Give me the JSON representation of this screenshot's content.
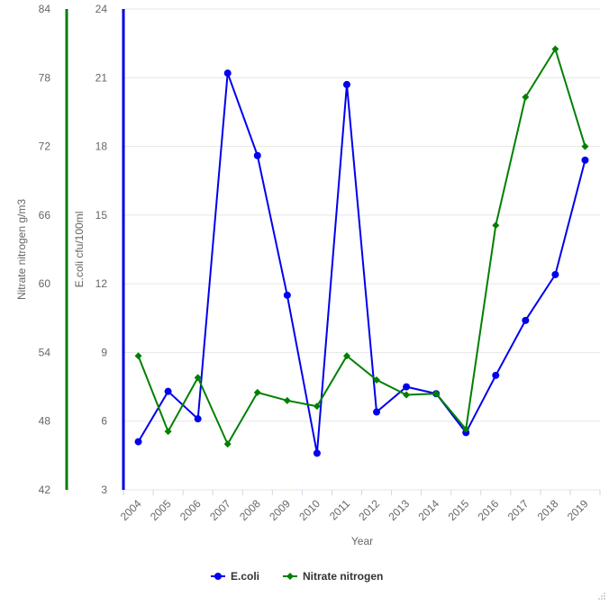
{
  "chart_data": {
    "type": "line",
    "categories": [
      "2004",
      "2005",
      "2006",
      "2007",
      "2008",
      "2009",
      "2010",
      "2011",
      "2012",
      "2013",
      "2014",
      "2015",
      "2016",
      "2017",
      "2018",
      "2019"
    ],
    "xlabel": "Year",
    "grid": true,
    "legend_position": "bottom-center",
    "axes": {
      "left_outer": {
        "label": "Nitrate nitrogen g/m3",
        "ylim": [
          42,
          84
        ],
        "ticks": [
          "42",
          "48",
          "54",
          "60",
          "66",
          "72",
          "78",
          "84"
        ],
        "tick_values": [
          42,
          48,
          54,
          60,
          66,
          72,
          78,
          84
        ],
        "color": "#008000"
      },
      "left_inner": {
        "label": "E.coli cfu/100ml",
        "ylim": [
          3,
          24
        ],
        "ticks": [
          "3",
          "6",
          "9",
          "12",
          "15",
          "18",
          "21",
          "24"
        ],
        "tick_values": [
          3,
          6,
          9,
          12,
          15,
          18,
          21,
          24
        ],
        "color": "#0000dd"
      }
    },
    "series": [
      {
        "name": "E.coli",
        "axis": "left_inner",
        "color": "#0000ee",
        "marker": "circle",
        "values": [
          5.1,
          7.3,
          6.1,
          21.2,
          17.6,
          11.5,
          4.6,
          20.7,
          6.4,
          7.5,
          7.2,
          5.5,
          8.0,
          10.4,
          12.4,
          17.4
        ]
      },
      {
        "name": "Nitrate nitrogen",
        "axis": "left_outer",
        "color": "#008000",
        "marker": "diamond",
        "values": [
          53.7,
          47.1,
          51.8,
          46.0,
          50.5,
          49.8,
          49.3,
          53.7,
          51.6,
          50.3,
          50.4,
          47.3,
          65.1,
          76.3,
          80.5,
          72.0
        ]
      }
    ]
  }
}
